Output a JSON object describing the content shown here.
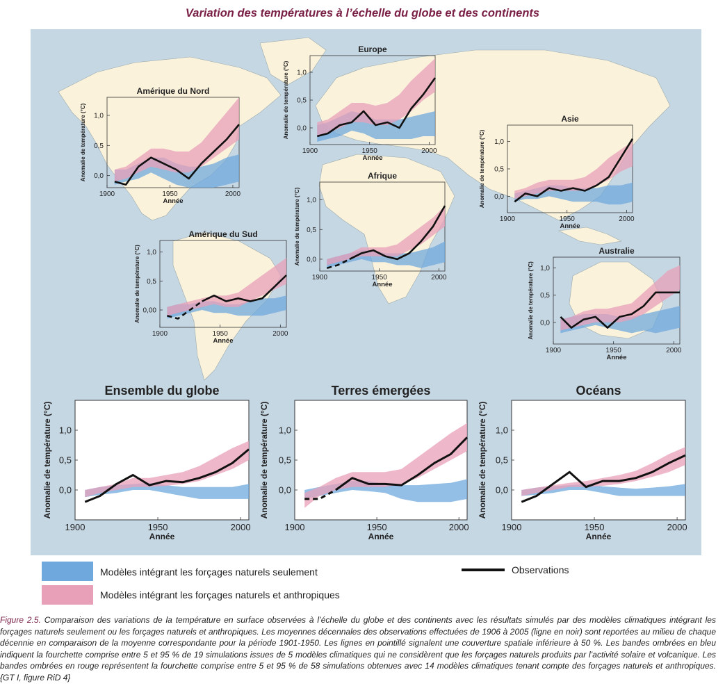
{
  "title": "Variation des températures à l’échelle du globe et des continents",
  "colors": {
    "natural": "#6fa8dc",
    "anthro": "#e8a0b8",
    "overlap": "#b08cb5",
    "obs": "#111111",
    "frame": "#333333",
    "land": "#fbf2dc",
    "ocean": "#c6d7e4",
    "title": "#7a1f45"
  },
  "chart_data": [
    {
      "id": "amerique-du-nord",
      "type": "line",
      "title": "Amérique du Nord",
      "xlabel": "Année",
      "ylabel": "Anomalie de température (°C)",
      "xlim": [
        1900,
        2005
      ],
      "ylim": [
        -0.2,
        1.3
      ],
      "xticks": [
        1900,
        1950,
        2000
      ],
      "yticks": [
        {
          "v": 0,
          "label": "0,0"
        },
        {
          "v": 0.5,
          "label": "0,5"
        },
        {
          "v": 1,
          "label": "1,0"
        }
      ],
      "x": [
        1906,
        1915,
        1925,
        1935,
        1945,
        1955,
        1965,
        1975,
        1985,
        1995,
        2005
      ],
      "observations": [
        -0.1,
        -0.15,
        0.15,
        0.3,
        0.2,
        0.1,
        -0.05,
        0.2,
        0.4,
        0.6,
        0.85
      ],
      "observations_dashed_until": null,
      "natural_low": [
        -0.15,
        -0.1,
        -0.05,
        0.05,
        -0.05,
        -0.15,
        -0.2,
        -0.2,
        -0.2,
        -0.15,
        -0.1
      ],
      "natural_high": [
        0.1,
        0.1,
        0.2,
        0.3,
        0.3,
        0.2,
        0.15,
        0.15,
        0.2,
        0.3,
        0.35
      ],
      "anthro_low": [
        -0.1,
        -0.05,
        0.05,
        0.15,
        0.1,
        0.05,
        0.05,
        0.15,
        0.3,
        0.45,
        0.6
      ],
      "anthro_high": [
        0.1,
        0.15,
        0.3,
        0.45,
        0.45,
        0.4,
        0.4,
        0.55,
        0.8,
        1.05,
        1.3
      ]
    },
    {
      "id": "europe",
      "type": "line",
      "title": "Europe",
      "xlabel": "Année",
      "ylabel": "Anomalie de température (°C)",
      "xlim": [
        1900,
        2005
      ],
      "ylim": [
        -0.3,
        1.3
      ],
      "xticks": [
        1900,
        1950,
        2000
      ],
      "yticks": [
        {
          "v": 0,
          "label": "0,0"
        },
        {
          "v": 0.5,
          "label": "0,5"
        },
        {
          "v": 1,
          "label": "1,0"
        }
      ],
      "x": [
        1906,
        1915,
        1925,
        1935,
        1945,
        1955,
        1965,
        1975,
        1985,
        1995,
        2005
      ],
      "observations": [
        -0.15,
        -0.1,
        0.05,
        0.1,
        0.3,
        0.05,
        0.1,
        0.0,
        0.35,
        0.6,
        0.9
      ],
      "observations_dashed_until": null,
      "natural_low": [
        -0.25,
        -0.2,
        -0.15,
        -0.05,
        -0.1,
        -0.2,
        -0.2,
        -0.2,
        -0.2,
        -0.15,
        -0.15
      ],
      "natural_high": [
        0.05,
        0.1,
        0.2,
        0.3,
        0.25,
        0.15,
        0.15,
        0.15,
        0.2,
        0.25,
        0.3
      ],
      "anthro_low": [
        -0.15,
        -0.1,
        0.0,
        0.1,
        0.1,
        0.05,
        0.05,
        0.15,
        0.3,
        0.5,
        0.65
      ],
      "anthro_high": [
        0.1,
        0.15,
        0.3,
        0.45,
        0.45,
        0.4,
        0.45,
        0.6,
        0.85,
        1.05,
        1.25
      ]
    },
    {
      "id": "asie",
      "type": "line",
      "title": "Asie",
      "xlabel": "Année",
      "ylabel": "Anomalie de température (°C)",
      "xlim": [
        1900,
        2005
      ],
      "ylim": [
        -0.3,
        1.3
      ],
      "xticks": [
        1900,
        1950,
        2000
      ],
      "yticks": [
        {
          "v": 0,
          "label": "0,0"
        },
        {
          "v": 0.5,
          "label": "0,5"
        },
        {
          "v": 1,
          "label": "1,0"
        }
      ],
      "x": [
        1906,
        1915,
        1925,
        1935,
        1945,
        1955,
        1965,
        1975,
        1985,
        1995,
        2005
      ],
      "observations": [
        -0.1,
        0.05,
        0.0,
        0.15,
        0.1,
        0.15,
        0.1,
        0.2,
        0.35,
        0.7,
        1.05
      ],
      "observations_dashed_until": null,
      "natural_low": [
        -0.1,
        -0.05,
        -0.05,
        0.0,
        -0.05,
        -0.1,
        -0.1,
        -0.1,
        -0.15,
        -0.15,
        -0.1
      ],
      "natural_high": [
        0.05,
        0.1,
        0.15,
        0.2,
        0.2,
        0.15,
        0.15,
        0.15,
        0.2,
        0.2,
        0.25
      ],
      "anthro_low": [
        -0.05,
        0.0,
        0.05,
        0.1,
        0.1,
        0.1,
        0.1,
        0.2,
        0.3,
        0.45,
        0.55
      ],
      "anthro_high": [
        0.1,
        0.15,
        0.25,
        0.3,
        0.3,
        0.3,
        0.35,
        0.5,
        0.7,
        0.85,
        1.0
      ]
    },
    {
      "id": "afrique",
      "type": "line",
      "title": "Afrique",
      "xlabel": "Année",
      "ylabel": "Anomalie de température (°C)",
      "xlim": [
        1900,
        2005
      ],
      "ylim": [
        -0.2,
        1.3
      ],
      "xticks": [
        1900,
        1950,
        2000
      ],
      "yticks": [
        {
          "v": 0,
          "label": "0,0"
        },
        {
          "v": 0.5,
          "label": "0,5"
        },
        {
          "v": 1,
          "label": "1,0"
        }
      ],
      "x": [
        1906,
        1915,
        1925,
        1935,
        1945,
        1955,
        1965,
        1975,
        1985,
        1995,
        2005
      ],
      "observations": [
        -0.15,
        -0.1,
        0.0,
        0.1,
        0.15,
        0.05,
        0.0,
        0.1,
        0.3,
        0.55,
        0.9
      ],
      "observations_dashed_until": 1930,
      "natural_low": [
        -0.15,
        -0.1,
        -0.05,
        0.0,
        -0.05,
        -0.05,
        -0.1,
        -0.1,
        -0.15,
        -0.1,
        -0.05
      ],
      "natural_high": [
        0.0,
        0.05,
        0.1,
        0.15,
        0.15,
        0.1,
        0.1,
        0.1,
        0.15,
        0.2,
        0.3
      ],
      "anthro_low": [
        -0.1,
        -0.05,
        0.0,
        0.05,
        0.05,
        0.05,
        0.05,
        0.15,
        0.25,
        0.4,
        0.55
      ],
      "anthro_high": [
        0.0,
        0.05,
        0.1,
        0.2,
        0.2,
        0.2,
        0.25,
        0.4,
        0.55,
        0.7,
        0.9
      ]
    },
    {
      "id": "amerique-du-sud",
      "type": "line",
      "title": "Amérique du Sud",
      "xlabel": "Année",
      "ylabel": "Anomalie de température (°C)",
      "xlim": [
        1900,
        2005
      ],
      "ylim": [
        -0.3,
        1.2
      ],
      "xticks": [
        1900,
        1950,
        2000
      ],
      "yticks": [
        {
          "v": 0,
          "label": "0,00"
        },
        {
          "v": 0.5,
          "label": "0,5"
        },
        {
          "v": 1,
          "label": "1,0"
        }
      ],
      "x": [
        1906,
        1915,
        1925,
        1935,
        1945,
        1955,
        1965,
        1975,
        1985,
        1995,
        2005
      ],
      "observations": [
        -0.1,
        -0.15,
        0.0,
        0.15,
        0.25,
        0.15,
        0.2,
        0.15,
        0.2,
        0.4,
        0.6
      ],
      "observations_dashed_until": 1935,
      "natural_low": [
        -0.15,
        -0.1,
        -0.05,
        0.0,
        -0.05,
        -0.05,
        -0.1,
        -0.1,
        -0.1,
        -0.05,
        0.0
      ],
      "natural_high": [
        0.05,
        0.1,
        0.1,
        0.15,
        0.15,
        0.1,
        0.1,
        0.15,
        0.2,
        0.2,
        0.25
      ],
      "anthro_low": [
        -0.1,
        -0.05,
        0.0,
        0.05,
        0.1,
        0.05,
        0.05,
        0.15,
        0.25,
        0.35,
        0.45
      ],
      "anthro_high": [
        0.05,
        0.1,
        0.15,
        0.2,
        0.25,
        0.25,
        0.3,
        0.45,
        0.6,
        0.75,
        0.9
      ]
    },
    {
      "id": "australie",
      "type": "line",
      "title": "Australie",
      "xlabel": "Année",
      "ylabel": "Anomalie de température (°C)",
      "xlim": [
        1900,
        2005
      ],
      "ylim": [
        -0.4,
        1.2
      ],
      "xticks": [
        1900,
        1950,
        2000
      ],
      "yticks": [
        {
          "v": 0,
          "label": "0,0"
        },
        {
          "v": 0.5,
          "label": "0,5"
        },
        {
          "v": 1,
          "label": "1,0"
        }
      ],
      "x": [
        1906,
        1915,
        1925,
        1935,
        1945,
        1955,
        1965,
        1975,
        1985,
        1995,
        2005
      ],
      "observations": [
        0.1,
        -0.1,
        0.05,
        0.1,
        -0.1,
        0.1,
        0.15,
        0.3,
        0.55,
        0.55,
        0.55
      ],
      "observations_dashed_until": null,
      "natural_low": [
        -0.2,
        -0.15,
        -0.1,
        -0.05,
        -0.1,
        -0.15,
        -0.2,
        -0.15,
        -0.2,
        -0.15,
        -0.1
      ],
      "natural_high": [
        0.05,
        0.1,
        0.15,
        0.15,
        0.15,
        0.1,
        0.1,
        0.15,
        0.2,
        0.25,
        0.3
      ],
      "anthro_low": [
        -0.15,
        -0.1,
        -0.05,
        0.0,
        0.0,
        0.0,
        0.05,
        0.15,
        0.3,
        0.45,
        0.6
      ],
      "anthro_high": [
        0.05,
        0.1,
        0.2,
        0.25,
        0.25,
        0.3,
        0.35,
        0.55,
        0.75,
        0.95,
        1.05
      ]
    },
    {
      "id": "ensemble-du-globe",
      "type": "line",
      "title": "Ensemble du globe",
      "xlabel": "Année",
      "ylabel": "Anomalie de température (°C)",
      "xlim": [
        1900,
        2005
      ],
      "ylim": [
        -0.5,
        1.5
      ],
      "xticks": [
        1900,
        1950,
        2000
      ],
      "yticks": [
        {
          "v": 0,
          "label": "0,0"
        },
        {
          "v": 0.5,
          "label": "0,5"
        },
        {
          "v": 1,
          "label": "1,0"
        }
      ],
      "x": [
        1906,
        1915,
        1925,
        1935,
        1945,
        1955,
        1965,
        1975,
        1985,
        1995,
        2005
      ],
      "observations": [
        -0.2,
        -0.1,
        0.1,
        0.25,
        0.08,
        0.15,
        0.13,
        0.2,
        0.3,
        0.45,
        0.68
      ],
      "observations_dashed_until": null,
      "natural_low": [
        -0.12,
        -0.08,
        -0.05,
        0.0,
        0.0,
        -0.05,
        -0.1,
        -0.15,
        -0.15,
        -0.15,
        -0.15
      ],
      "natural_high": [
        0.0,
        0.05,
        0.08,
        0.1,
        0.12,
        0.08,
        0.05,
        0.05,
        0.05,
        0.05,
        0.1
      ],
      "anthro_low": [
        -0.12,
        -0.05,
        0.0,
        0.05,
        0.05,
        0.07,
        0.1,
        0.15,
        0.25,
        0.35,
        0.5
      ],
      "anthro_high": [
        0.0,
        0.05,
        0.1,
        0.2,
        0.2,
        0.25,
        0.3,
        0.4,
        0.55,
        0.7,
        0.82
      ]
    },
    {
      "id": "terres-emergees",
      "type": "line",
      "title": "Terres émergées",
      "xlabel": "Année",
      "ylabel": "Anomalie de température (°C)",
      "xlim": [
        1900,
        2005
      ],
      "ylim": [
        -0.5,
        1.5
      ],
      "xticks": [
        1900,
        1950,
        2000
      ],
      "yticks": [
        {
          "v": 0,
          "label": "0,0"
        },
        {
          "v": 0.5,
          "label": "0,5"
        },
        {
          "v": 1,
          "label": "1,0"
        }
      ],
      "x": [
        1906,
        1915,
        1925,
        1935,
        1945,
        1955,
        1965,
        1975,
        1985,
        1995,
        2005
      ],
      "observations": [
        -0.15,
        -0.15,
        0.0,
        0.2,
        0.1,
        0.1,
        0.08,
        0.25,
        0.45,
        0.6,
        0.88
      ],
      "observations_dashed_until": 1928,
      "natural_low": [
        -0.15,
        -0.1,
        -0.05,
        0.0,
        -0.02,
        -0.05,
        -0.15,
        -0.2,
        -0.2,
        -0.2,
        -0.15
      ],
      "natural_high": [
        0.0,
        0.05,
        0.1,
        0.15,
        0.15,
        0.1,
        0.08,
        0.08,
        0.1,
        0.12,
        0.18
      ],
      "anthro_low": [
        -0.3,
        -0.1,
        0.0,
        0.05,
        0.05,
        0.05,
        0.1,
        0.2,
        0.35,
        0.5,
        0.65
      ],
      "anthro_high": [
        -0.05,
        0.05,
        0.2,
        0.3,
        0.3,
        0.3,
        0.35,
        0.55,
        0.75,
        0.95,
        1.12
      ]
    },
    {
      "id": "oceans",
      "type": "line",
      "title": "Océans",
      "xlabel": "Année",
      "ylabel": "Anomalie de température (°C)",
      "xlim": [
        1900,
        2005
      ],
      "ylim": [
        -0.5,
        1.5
      ],
      "xticks": [
        1900,
        1950,
        2000
      ],
      "yticks": [
        {
          "v": 0,
          "label": "0,0"
        },
        {
          "v": 0.5,
          "label": "0,5"
        },
        {
          "v": 1,
          "label": "1,0"
        }
      ],
      "x": [
        1906,
        1915,
        1925,
        1935,
        1945,
        1955,
        1965,
        1975,
        1985,
        1995,
        2005
      ],
      "observations": [
        -0.2,
        -0.1,
        0.1,
        0.3,
        0.05,
        0.15,
        0.15,
        0.2,
        0.3,
        0.45,
        0.58
      ],
      "observations_dashed_until": null,
      "natural_low": [
        -0.1,
        -0.08,
        -0.05,
        0.0,
        0.0,
        -0.05,
        -0.1,
        -0.1,
        -0.1,
        -0.1,
        -0.1
      ],
      "natural_high": [
        0.0,
        0.04,
        0.06,
        0.08,
        0.1,
        0.06,
        0.04,
        0.02,
        0.04,
        0.06,
        0.1
      ],
      "anthro_low": [
        -0.1,
        -0.05,
        0.0,
        0.05,
        0.05,
        0.07,
        0.1,
        0.15,
        0.22,
        0.3,
        0.42
      ],
      "anthro_high": [
        0.0,
        0.04,
        0.08,
        0.12,
        0.15,
        0.2,
        0.25,
        0.32,
        0.45,
        0.6,
        0.72
      ]
    }
  ],
  "legend": {
    "natural": "Modèles intégrant les forçages naturels seulement",
    "anthro": "Modèles intégrant les forçages naturels et anthropiques",
    "obs": "Observations"
  },
  "caption": {
    "label": "Figure 2.5.",
    "text": " Comparaison des variations de la température en surface observées à l’échelle du globe et des continents avec les résultats simulés par des modèles climatiques intégrant les forçages naturels seulement ou les forçages naturels et anthropiques. Les moyennes décennales des observations effectuées de 1906 à 2005 (ligne en noir) sont reportées au milieu de chaque décennie en comparaison de la moyenne correspondante pour la période 1901-1950. Les lignes en pointillé signalent une couverture spatiale inférieure à 50 %. Les bandes ombrées en bleu indiquent la fourchette comprise entre 5 et 95 % de 19 simulations issues de 5 modèles climatiques qui ne considèrent que les forçages naturels produits par l’activité solaire et volcanique. Les bandes ombrées en rouge représentent la fourchette comprise entre 5 et 95 % de 58 simulations obtenues avec 14 modèles climatiques tenant compte des forçages naturels et anthropiques. {GT I, figure RiD 4}"
  }
}
